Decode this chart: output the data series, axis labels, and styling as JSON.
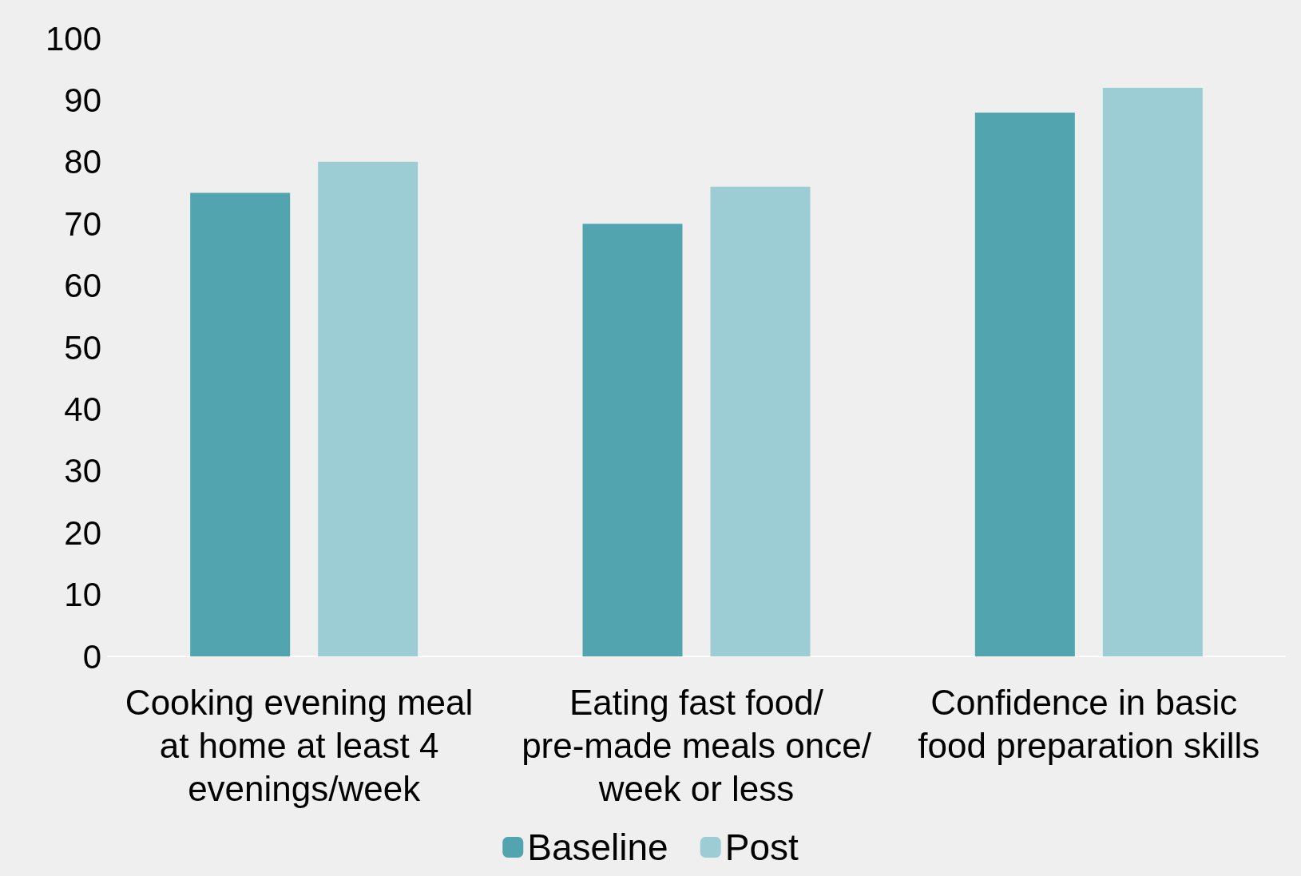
{
  "chart_data": {
    "type": "bar",
    "categories": [
      "Cooking evening meal at home at least 4 evenings/week",
      "Eating fast food/pre-made meals once/week or less",
      "Confidence in basic food preparation skills"
    ],
    "series": [
      {
        "name": "Baseline",
        "color": "#52a5ae",
        "values": [
          75,
          70,
          88
        ]
      },
      {
        "name": "Post",
        "color": "#9ccdd5",
        "values": [
          80,
          76,
          92
        ]
      }
    ],
    "ylim": [
      0,
      100
    ],
    "yticks": [
      0,
      10,
      20,
      30,
      40,
      50,
      60,
      70,
      80,
      90,
      100
    ],
    "grid": false,
    "legend": "bottom"
  }
}
